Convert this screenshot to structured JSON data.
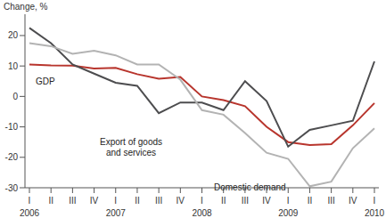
{
  "chart_data": {
    "type": "line",
    "y_label": "Change, %",
    "categories": [
      "I",
      "II",
      "III",
      "IV",
      "I",
      "II",
      "III",
      "IV",
      "I",
      "II",
      "III",
      "IV",
      "I",
      "II",
      "III",
      "IV",
      "I"
    ],
    "x_groups": [
      {
        "label": "2006",
        "start": 0
      },
      {
        "label": "2007",
        "start": 4
      },
      {
        "label": "2008",
        "start": 8
      },
      {
        "label": "2009",
        "start": 12
      },
      {
        "label": "2010",
        "start": 16
      }
    ],
    "series": [
      {
        "name": "GDP",
        "color": "#b8352d",
        "values": [
          10.5,
          10.2,
          10.1,
          9.2,
          9.4,
          7.3,
          5.8,
          6.4,
          0,
          -1.2,
          -3.2,
          -10,
          -15,
          -16,
          -15.7,
          -9.5,
          -2.2
        ]
      },
      {
        "name": "Export of goods and services",
        "color": "#4d4d4f",
        "values": [
          22.5,
          17.5,
          10.5,
          7.5,
          4.5,
          3.5,
          -5.5,
          -2,
          -2,
          -4.5,
          5,
          -1.5,
          -16.5,
          -11,
          -9.5,
          -8,
          11.5
        ]
      },
      {
        "name": "Domestic demand",
        "color": "#b3b3b3",
        "values": [
          17.5,
          16.5,
          14,
          15,
          13.5,
          10.5,
          10.5,
          5.5,
          -4.5,
          -6,
          -12,
          -18.5,
          -20.5,
          -29.5,
          -28,
          -17,
          -10.5
        ]
      }
    ],
    "annotations": [
      {
        "text": [
          "GDP"
        ]
      },
      {
        "text": [
          "Export of goods",
          "and services"
        ]
      },
      {
        "text": [
          "Domestic demand"
        ]
      }
    ],
    "ylim": [
      -30,
      27
    ],
    "yticks": [
      -30,
      -20,
      -10,
      0,
      10,
      20
    ],
    "grid": false
  }
}
